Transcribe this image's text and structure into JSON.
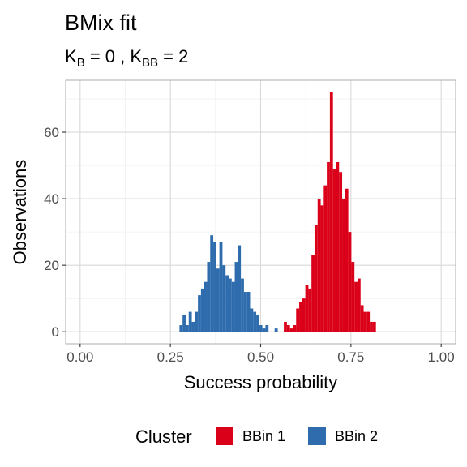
{
  "chart_data": {
    "type": "bar",
    "title": "BMix fit",
    "subtitle": {
      "k_b_base": "K",
      "k_b_sub": "B",
      "k_b_value": " = 0 , ",
      "k_bb_base": "K",
      "k_bb_sub": "BB",
      "k_bb_value": " = 2"
    },
    "xlabel": "Success probability",
    "ylabel": "Observations",
    "xlim": [
      -0.04,
      1.04
    ],
    "ylim": [
      -3.6,
      75.6
    ],
    "xticks": [
      {
        "value": 0.0,
        "label": "0.00"
      },
      {
        "value": 0.25,
        "label": "0.25"
      },
      {
        "value": 0.5,
        "label": "0.50"
      },
      {
        "value": 0.75,
        "label": "0.75"
      },
      {
        "value": 1.0,
        "label": "1.00"
      }
    ],
    "yticks": [
      {
        "value": 0,
        "label": "0"
      },
      {
        "value": 20,
        "label": "20"
      },
      {
        "value": 40,
        "label": "40"
      },
      {
        "value": 60,
        "label": "60"
      }
    ],
    "grid": true,
    "bin_width": 0.0085,
    "legend": {
      "title": "Cluster",
      "position": "bottom"
    },
    "series": [
      {
        "name": "BBin 1",
        "color": "#DA0019",
        "bins": [
          {
            "x": 0.5685,
            "y": 3
          },
          {
            "x": 0.577,
            "y": 2
          },
          {
            "x": 0.5855,
            "y": 1
          },
          {
            "x": 0.594,
            "y": 2
          },
          {
            "x": 0.6025,
            "y": 7
          },
          {
            "x": 0.611,
            "y": 9
          },
          {
            "x": 0.6195,
            "y": 10
          },
          {
            "x": 0.628,
            "y": 14
          },
          {
            "x": 0.6365,
            "y": 13
          },
          {
            "x": 0.645,
            "y": 23
          },
          {
            "x": 0.6535,
            "y": 32
          },
          {
            "x": 0.662,
            "y": 40
          },
          {
            "x": 0.6705,
            "y": 38
          },
          {
            "x": 0.679,
            "y": 44
          },
          {
            "x": 0.6875,
            "y": 51
          },
          {
            "x": 0.696,
            "y": 72
          },
          {
            "x": 0.7045,
            "y": 49
          },
          {
            "x": 0.713,
            "y": 51
          },
          {
            "x": 0.7215,
            "y": 48
          },
          {
            "x": 0.73,
            "y": 40
          },
          {
            "x": 0.7385,
            "y": 43
          },
          {
            "x": 0.747,
            "y": 30
          },
          {
            "x": 0.7555,
            "y": 21
          },
          {
            "x": 0.764,
            "y": 15
          },
          {
            "x": 0.7725,
            "y": 16
          },
          {
            "x": 0.781,
            "y": 8
          },
          {
            "x": 0.7895,
            "y": 6
          },
          {
            "x": 0.798,
            "y": 6
          },
          {
            "x": 0.8065,
            "y": 3
          },
          {
            "x": 0.815,
            "y": 3
          }
        ]
      },
      {
        "name": "BBin 2",
        "color": "#2E6CAD",
        "bins": [
          {
            "x": 0.2795,
            "y": 2
          },
          {
            "x": 0.288,
            "y": 5
          },
          {
            "x": 0.2965,
            "y": 2
          },
          {
            "x": 0.305,
            "y": 6
          },
          {
            "x": 0.3135,
            "y": 3
          },
          {
            "x": 0.322,
            "y": 6
          },
          {
            "x": 0.3305,
            "y": 11
          },
          {
            "x": 0.339,
            "y": 13
          },
          {
            "x": 0.3475,
            "y": 15
          },
          {
            "x": 0.356,
            "y": 21
          },
          {
            "x": 0.3645,
            "y": 29
          },
          {
            "x": 0.373,
            "y": 27
          },
          {
            "x": 0.3815,
            "y": 19
          },
          {
            "x": 0.39,
            "y": 27
          },
          {
            "x": 0.3985,
            "y": 20
          },
          {
            "x": 0.407,
            "y": 17
          },
          {
            "x": 0.4155,
            "y": 16
          },
          {
            "x": 0.424,
            "y": 15
          },
          {
            "x": 0.4325,
            "y": 21
          },
          {
            "x": 0.441,
            "y": 26
          },
          {
            "x": 0.4495,
            "y": 16
          },
          {
            "x": 0.458,
            "y": 12
          },
          {
            "x": 0.4665,
            "y": 12
          },
          {
            "x": 0.475,
            "y": 7
          },
          {
            "x": 0.4835,
            "y": 6
          },
          {
            "x": 0.492,
            "y": 5
          },
          {
            "x": 0.5005,
            "y": 2
          },
          {
            "x": 0.509,
            "y": 1
          },
          {
            "x": 0.5175,
            "y": 2
          },
          {
            "x": 0.543,
            "y": 1
          }
        ]
      }
    ]
  }
}
